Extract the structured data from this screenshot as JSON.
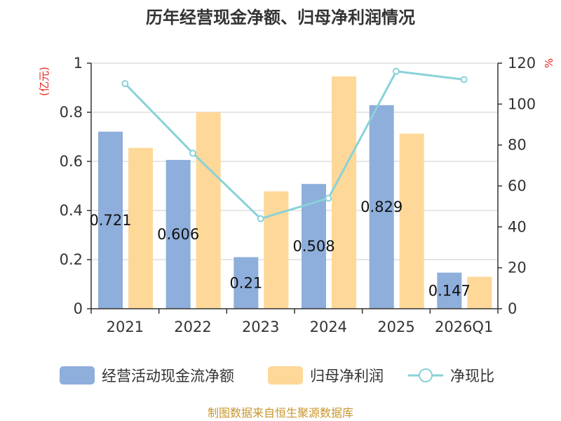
{
  "chart_data": {
    "type": "bar",
    "title": "历年经营现金净额、归母净利润情况",
    "categories": [
      "2021",
      "2022",
      "2023",
      "2024",
      "2025",
      "2026Q1"
    ],
    "series": [
      {
        "name": "经营活动现金流净额",
        "kind": "bar",
        "axis": "left",
        "color": "#8eaedb",
        "values": [
          0.721,
          0.606,
          0.21,
          0.508,
          0.829,
          0.147
        ],
        "labels": [
          "0.721",
          "0.606",
          "0.21",
          "0.508",
          "0.829",
          "0.147"
        ]
      },
      {
        "name": "归母净利润",
        "kind": "bar",
        "axis": "left",
        "color": "#fed898",
        "values": [
          0.655,
          0.8,
          0.478,
          0.946,
          0.713,
          0.13
        ]
      },
      {
        "name": "净现比",
        "kind": "line",
        "axis": "right",
        "color": "#89d2d8",
        "values": [
          110,
          76,
          44,
          54,
          116,
          112
        ]
      }
    ],
    "left_axis": {
      "unit": "(亿元)",
      "min": 0,
      "max": 1,
      "ticks": [
        "0",
        "0.2",
        "0.4",
        "0.6",
        "0.8",
        "1"
      ]
    },
    "right_axis": {
      "unit": "%",
      "min": 0,
      "max": 120,
      "ticks": [
        "0",
        "20",
        "40",
        "60",
        "80",
        "100",
        "120"
      ]
    },
    "grid": true,
    "legend_position": "bottom"
  },
  "footer": {
    "source": "制图数据来自恒生聚源数据库"
  }
}
